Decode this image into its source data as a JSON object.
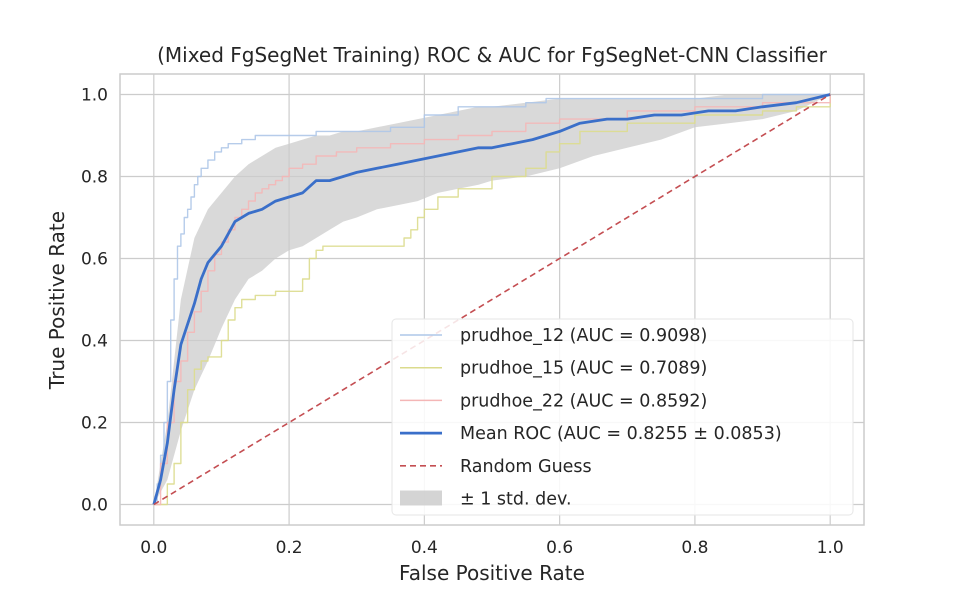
{
  "chart_data": {
    "type": "line",
    "title": "(Mixed FgSegNet Training) ROC & AUC for FgSegNet-CNN Classifier",
    "xlabel": "False Positive Rate",
    "ylabel": "True Positive Rate",
    "xlim": [
      -0.05,
      1.05
    ],
    "ylim": [
      -0.05,
      1.05
    ],
    "xticks": [
      "0.0",
      "0.2",
      "0.4",
      "0.6",
      "0.8",
      "1.0"
    ],
    "yticks": [
      "0.0",
      "0.2",
      "0.4",
      "0.6",
      "0.8",
      "1.0"
    ],
    "grid": true,
    "legend_position": "lower-right",
    "series": [
      {
        "name": "prudhoe_12 (AUC = 0.9098)",
        "color": "#aec7e8",
        "style": "step",
        "x": [
          0.0,
          0.005,
          0.01,
          0.015,
          0.02,
          0.025,
          0.03,
          0.035,
          0.04,
          0.045,
          0.05,
          0.055,
          0.06,
          0.065,
          0.07,
          0.08,
          0.09,
          0.1,
          0.11,
          0.12,
          0.13,
          0.14,
          0.15,
          0.17,
          0.19,
          0.21,
          0.24,
          0.27,
          0.3,
          0.35,
          0.4,
          0.45,
          0.5,
          0.55,
          0.58,
          0.62,
          0.7,
          0.8,
          0.9,
          1.0
        ],
        "y": [
          0.0,
          0.05,
          0.12,
          0.2,
          0.3,
          0.45,
          0.55,
          0.63,
          0.66,
          0.7,
          0.72,
          0.75,
          0.78,
          0.8,
          0.82,
          0.84,
          0.86,
          0.87,
          0.88,
          0.88,
          0.89,
          0.89,
          0.9,
          0.9,
          0.9,
          0.9,
          0.91,
          0.91,
          0.91,
          0.92,
          0.95,
          0.97,
          0.97,
          0.98,
          0.99,
          0.99,
          0.99,
          0.99,
          1.0,
          1.0
        ]
      },
      {
        "name": "prudhoe_15 (AUC = 0.7089)",
        "color": "#dbdb8d",
        "style": "step",
        "x": [
          0.0,
          0.02,
          0.03,
          0.04,
          0.05,
          0.06,
          0.07,
          0.08,
          0.1,
          0.11,
          0.12,
          0.13,
          0.15,
          0.18,
          0.2,
          0.22,
          0.23,
          0.24,
          0.25,
          0.27,
          0.3,
          0.33,
          0.36,
          0.37,
          0.38,
          0.39,
          0.4,
          0.42,
          0.45,
          0.5,
          0.55,
          0.58,
          0.6,
          0.63,
          0.7,
          0.8,
          0.9,
          0.95,
          1.0
        ],
        "y": [
          0.0,
          0.05,
          0.1,
          0.2,
          0.28,
          0.33,
          0.35,
          0.36,
          0.4,
          0.45,
          0.48,
          0.5,
          0.51,
          0.52,
          0.52,
          0.55,
          0.6,
          0.62,
          0.63,
          0.63,
          0.63,
          0.63,
          0.63,
          0.65,
          0.67,
          0.7,
          0.72,
          0.75,
          0.77,
          0.8,
          0.82,
          0.86,
          0.88,
          0.91,
          0.93,
          0.95,
          0.96,
          0.97,
          1.0
        ]
      },
      {
        "name": "prudhoe_22 (AUC = 0.8592)",
        "color": "#f4b6b6",
        "style": "step",
        "x": [
          0.0,
          0.01,
          0.02,
          0.03,
          0.04,
          0.05,
          0.06,
          0.07,
          0.08,
          0.09,
          0.1,
          0.11,
          0.12,
          0.13,
          0.14,
          0.15,
          0.16,
          0.17,
          0.18,
          0.19,
          0.2,
          0.22,
          0.24,
          0.27,
          0.3,
          0.35,
          0.4,
          0.45,
          0.5,
          0.55,
          0.6,
          0.7,
          0.8,
          0.9,
          1.0
        ],
        "y": [
          0.0,
          0.1,
          0.2,
          0.3,
          0.35,
          0.42,
          0.47,
          0.52,
          0.57,
          0.61,
          0.64,
          0.67,
          0.7,
          0.72,
          0.74,
          0.76,
          0.77,
          0.78,
          0.79,
          0.8,
          0.82,
          0.83,
          0.85,
          0.86,
          0.87,
          0.88,
          0.89,
          0.9,
          0.91,
          0.93,
          0.94,
          0.96,
          0.97,
          0.98,
          1.0
        ]
      },
      {
        "name": "Mean ROC (AUC = 0.8255 ± 0.0853)",
        "color": "#3a6fc9",
        "style": "line",
        "x": [
          0.0,
          0.01,
          0.02,
          0.03,
          0.04,
          0.05,
          0.06,
          0.07,
          0.08,
          0.1,
          0.12,
          0.14,
          0.16,
          0.18,
          0.2,
          0.22,
          0.24,
          0.26,
          0.28,
          0.3,
          0.33,
          0.36,
          0.39,
          0.42,
          0.45,
          0.48,
          0.5,
          0.53,
          0.56,
          0.58,
          0.6,
          0.63,
          0.67,
          0.7,
          0.74,
          0.78,
          0.82,
          0.86,
          0.9,
          0.95,
          1.0
        ],
        "y": [
          0.0,
          0.06,
          0.15,
          0.28,
          0.39,
          0.44,
          0.49,
          0.55,
          0.59,
          0.63,
          0.69,
          0.71,
          0.72,
          0.74,
          0.75,
          0.76,
          0.79,
          0.79,
          0.8,
          0.81,
          0.82,
          0.83,
          0.84,
          0.85,
          0.86,
          0.87,
          0.87,
          0.88,
          0.89,
          0.9,
          0.91,
          0.93,
          0.94,
          0.94,
          0.95,
          0.95,
          0.96,
          0.96,
          0.97,
          0.98,
          1.0
        ]
      },
      {
        "name": "Random Guess",
        "color": "#c44e52",
        "style": "dashed",
        "x": [
          0.0,
          1.0
        ],
        "y": [
          0.0,
          1.0
        ]
      }
    ],
    "band": {
      "name": "± 1 std. dev.",
      "color": "#cccccc",
      "x": [
        0.0,
        0.02,
        0.04,
        0.06,
        0.08,
        0.1,
        0.12,
        0.14,
        0.16,
        0.18,
        0.2,
        0.22,
        0.24,
        0.26,
        0.28,
        0.3,
        0.33,
        0.36,
        0.39,
        0.42,
        0.45,
        0.48,
        0.5,
        0.55,
        0.6,
        0.65,
        0.7,
        0.75,
        0.8,
        0.85,
        0.9,
        0.95,
        1.0
      ],
      "upper": [
        0.0,
        0.2,
        0.5,
        0.65,
        0.72,
        0.76,
        0.8,
        0.83,
        0.85,
        0.87,
        0.88,
        0.89,
        0.9,
        0.9,
        0.91,
        0.91,
        0.92,
        0.93,
        0.94,
        0.95,
        0.96,
        0.97,
        0.97,
        0.98,
        0.99,
        0.99,
        0.99,
        0.99,
        0.99,
        1.0,
        1.0,
        1.0,
        1.0
      ],
      "lower": [
        0.0,
        0.06,
        0.18,
        0.28,
        0.35,
        0.43,
        0.5,
        0.55,
        0.57,
        0.6,
        0.62,
        0.63,
        0.65,
        0.67,
        0.69,
        0.7,
        0.72,
        0.73,
        0.74,
        0.76,
        0.77,
        0.78,
        0.79,
        0.8,
        0.82,
        0.85,
        0.87,
        0.89,
        0.92,
        0.93,
        0.94,
        0.96,
        1.0
      ]
    }
  }
}
